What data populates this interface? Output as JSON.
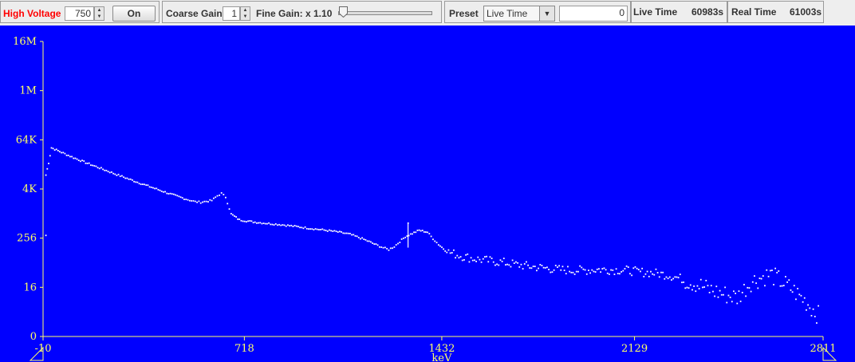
{
  "toolbar": {
    "high_voltage_label": "High Voltage",
    "high_voltage_value": "750",
    "on_button": "On",
    "coarse_gain_label": "Coarse Gain",
    "coarse_gain_value": "1",
    "fine_gain_label": "Fine Gain: x 1.10",
    "fine_gain_slider_fraction": 0.0,
    "preset_label": "Preset",
    "preset_selected": "Live Time",
    "preset_value": "0",
    "live_time_label": "Live Time",
    "live_time_value": "60983s",
    "real_time_label": "Real Time",
    "real_time_value": "61003s"
  },
  "colors": {
    "plot_background": "#0000ff",
    "axis": "#ffff66",
    "data": "#ffffff",
    "high_voltage_label": "#ff0000"
  },
  "chart_data": {
    "type": "scatter",
    "xlabel": "keV",
    "ylabel": "",
    "x_ticks": [
      "-10",
      "718",
      "1432",
      "2129",
      "2811"
    ],
    "y_ticks": [
      "0",
      "16",
      "256",
      "4K",
      "64K",
      "1M",
      "16M"
    ],
    "xlim": [
      -10,
      2811
    ],
    "y_scale": "log",
    "points": [
      [
        0,
        9000
      ],
      [
        10,
        18000
      ],
      [
        20,
        42000
      ],
      [
        50,
        34000
      ],
      [
        100,
        24000
      ],
      [
        150,
        17500
      ],
      [
        200,
        13000
      ],
      [
        250,
        9600
      ],
      [
        300,
        7200
      ],
      [
        350,
        5400
      ],
      [
        400,
        4100
      ],
      [
        450,
        3100
      ],
      [
        500,
        2400
      ],
      [
        540,
        2000
      ],
      [
        560,
        1950
      ],
      [
        600,
        2150
      ],
      [
        620,
        2800
      ],
      [
        635,
        3200
      ],
      [
        650,
        2600
      ],
      [
        670,
        1000
      ],
      [
        700,
        720
      ],
      [
        750,
        640
      ],
      [
        800,
        590
      ],
      [
        850,
        550
      ],
      [
        900,
        500
      ],
      [
        950,
        450
      ],
      [
        1000,
        410
      ],
      [
        1050,
        370
      ],
      [
        1100,
        320
      ],
      [
        1150,
        240
      ],
      [
        1200,
        170
      ],
      [
        1220,
        150
      ],
      [
        1240,
        135
      ],
      [
        1260,
        160
      ],
      [
        1300,
        280
      ],
      [
        1350,
        400
      ],
      [
        1380,
        360
      ],
      [
        1400,
        250
      ],
      [
        1420,
        180
      ],
      [
        1450,
        120
      ],
      [
        1500,
        95
      ],
      [
        1550,
        80
      ],
      [
        1600,
        72
      ],
      [
        1650,
        66
      ],
      [
        1700,
        58
      ],
      [
        1750,
        52
      ],
      [
        1800,
        48
      ],
      [
        1850,
        44
      ],
      [
        1900,
        42
      ],
      [
        1950,
        42
      ],
      [
        2000,
        44
      ],
      [
        2050,
        43
      ],
      [
        2100,
        42
      ],
      [
        2150,
        38
      ],
      [
        2200,
        36
      ],
      [
        2250,
        32
      ],
      [
        2300,
        26
      ],
      [
        2350,
        20
      ],
      [
        2400,
        14
      ],
      [
        2450,
        11
      ],
      [
        2500,
        9
      ],
      [
        2550,
        22
      ],
      [
        2600,
        30
      ],
      [
        2620,
        33
      ],
      [
        2650,
        25
      ],
      [
        2700,
        14
      ],
      [
        2750,
        7
      ],
      [
        2800,
        3
      ]
    ],
    "isolated_points": [
      [
        0,
        300
      ],
      [
        1310,
        600
      ]
    ]
  }
}
